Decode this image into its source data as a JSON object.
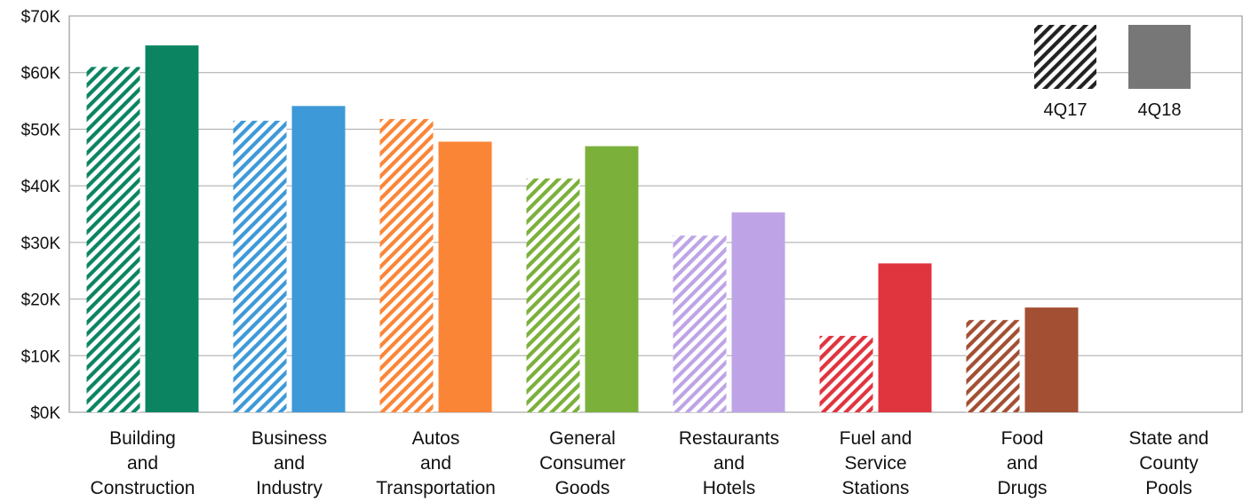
{
  "chart_data": {
    "type": "bar",
    "categories": [
      "Building\nand\nConstruction",
      "Business\nand\nIndustry",
      "Autos\nand\nTransportation",
      "General\nConsumer\nGoods",
      "Restaurants\nand\nHotels",
      "Fuel and\nService\nStations",
      "Food\nand\nDrugs",
      "State and\nCounty\nPools"
    ],
    "series": [
      {
        "name": "4Q17",
        "pattern": "hatched",
        "values": [
          61000,
          51500,
          51800,
          41300,
          31200,
          13500,
          16300,
          0
        ]
      },
      {
        "name": "4Q18",
        "pattern": "solid",
        "values": [
          64800,
          54100,
          47800,
          47000,
          35300,
          26300,
          18500,
          0
        ]
      }
    ],
    "category_colors": [
      "#0b8462",
      "#3e99d8",
      "#fb8537",
      "#7bb03b",
      "#bea4e6",
      "#e0343f",
      "#a24f33",
      "#888888"
    ],
    "legend_colors": [
      "#222222",
      "#777777"
    ],
    "ylim": [
      0,
      70000
    ],
    "yticks": [
      {
        "value": 0,
        "label": "$0K"
      },
      {
        "value": 10000,
        "label": "$10K"
      },
      {
        "value": 20000,
        "label": "$20K"
      },
      {
        "value": 30000,
        "label": "$30K"
      },
      {
        "value": 40000,
        "label": "$40K"
      },
      {
        "value": 50000,
        "label": "$50K"
      },
      {
        "value": 60000,
        "label": "$60K"
      },
      {
        "value": 70000,
        "label": "$70K"
      }
    ],
    "grid": true,
    "legend_position": "top-right"
  }
}
